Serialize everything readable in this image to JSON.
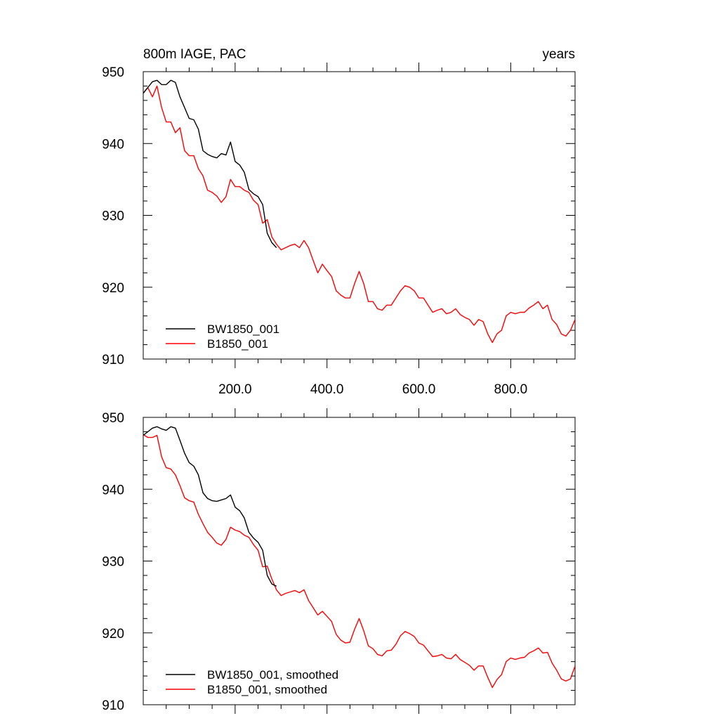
{
  "chart_data": [
    {
      "type": "line",
      "title": "800m IAGE, PAC",
      "subtitle_right": "years",
      "xlabel": "",
      "ylabel": "",
      "xlim": [
        0,
        940
      ],
      "ylim": [
        910,
        950
      ],
      "x_ticks": [
        200,
        400,
        600,
        800
      ],
      "x_tick_labels": [
        "200.0",
        "400.0",
        "600.0",
        "800.0"
      ],
      "y_ticks": [
        910,
        920,
        930,
        940,
        950
      ],
      "y_tick_labels": [
        "910",
        "920",
        "930",
        "940",
        "950"
      ],
      "grid": false,
      "legend_position": "bottom-left",
      "series": [
        {
          "name": "BW1850_001",
          "color": "#000000",
          "x": [
            0,
            10,
            20,
            30,
            40,
            50,
            60,
            70,
            80,
            90,
            100,
            110,
            120,
            130,
            140,
            150,
            160,
            170,
            180,
            190,
            200,
            210,
            220,
            230,
            240,
            250,
            260,
            270,
            280,
            290
          ],
          "values": [
            947,
            947.8,
            948.6,
            948.8,
            948.2,
            948.2,
            948.8,
            948.5,
            946.5,
            945,
            943.5,
            943.3,
            942,
            939,
            938.5,
            938.2,
            938,
            938.6,
            938.4,
            940.2,
            937.5,
            937,
            936,
            933.6,
            933,
            932.6,
            931.5,
            927.5,
            926.2,
            925.5
          ]
        },
        {
          "name": "B1850_001",
          "color": "#ff0000",
          "x": [
            0,
            10,
            20,
            30,
            40,
            50,
            60,
            70,
            80,
            90,
            100,
            110,
            120,
            130,
            140,
            150,
            160,
            170,
            180,
            190,
            200,
            210,
            220,
            230,
            240,
            250,
            260,
            270,
            280,
            290,
            300,
            310,
            320,
            330,
            340,
            350,
            360,
            370,
            380,
            390,
            400,
            410,
            420,
            430,
            440,
            450,
            460,
            470,
            480,
            490,
            500,
            510,
            520,
            530,
            540,
            550,
            560,
            570,
            580,
            590,
            600,
            610,
            620,
            630,
            640,
            650,
            660,
            670,
            680,
            690,
            700,
            710,
            720,
            730,
            740,
            750,
            760,
            770,
            780,
            790,
            800,
            810,
            820,
            830,
            840,
            850,
            860,
            870,
            880,
            890,
            900,
            910,
            920,
            930,
            940
          ],
          "values": [
            947,
            947.8,
            946.5,
            948,
            945,
            943,
            943,
            941.5,
            942.2,
            939,
            938.3,
            938.3,
            936.5,
            935.5,
            933.5,
            933.2,
            932.7,
            931.8,
            932.6,
            935,
            934,
            934,
            933.5,
            933.2,
            932.1,
            931.5,
            928.9,
            929.4,
            927,
            926,
            925.2,
            925.5,
            925.8,
            926,
            925.5,
            926.5,
            925.5,
            923.7,
            922,
            923.2,
            922.3,
            921.5,
            919.5,
            918.9,
            918.5,
            918.5,
            920.5,
            922.2,
            920.5,
            918,
            918,
            917,
            916.8,
            917.5,
            917.5,
            918.5,
            919.5,
            920.2,
            920,
            919.5,
            918.5,
            918.5,
            917.5,
            916.5,
            916.8,
            917,
            916.3,
            916.5,
            917,
            916.2,
            915.8,
            915.5,
            914.7,
            915.5,
            915.2,
            913.5,
            912.3,
            913.5,
            914,
            916,
            916.5,
            916.3,
            916.5,
            916.5,
            917.1,
            917.5,
            918,
            917,
            917.5,
            915.5,
            914.8,
            913.5,
            913.2,
            914,
            915.5
          ]
        }
      ]
    },
    {
      "type": "line",
      "title": "",
      "xlabel": "",
      "ylabel": "",
      "xlim": [
        0,
        940
      ],
      "ylim": [
        910,
        950
      ],
      "x_ticks": [
        200,
        400,
        600,
        800
      ],
      "x_tick_labels": [],
      "y_ticks": [
        910,
        920,
        930,
        940,
        950
      ],
      "y_tick_labels": [
        "910",
        "920",
        "930",
        "940",
        "950"
      ],
      "grid": false,
      "legend_position": "bottom-left",
      "series": [
        {
          "name": "BW1850_001, smoothed",
          "color": "#000000",
          "x": [
            0,
            10,
            20,
            30,
            40,
            50,
            60,
            70,
            80,
            90,
            100,
            110,
            120,
            130,
            140,
            150,
            160,
            170,
            180,
            190,
            200,
            210,
            220,
            230,
            240,
            250,
            260,
            270,
            280,
            290
          ],
          "values": [
            947.5,
            948,
            948.5,
            948.7,
            948.4,
            948.2,
            948.7,
            948.5,
            946.8,
            945,
            943.7,
            943.2,
            942,
            939.5,
            938.7,
            938.4,
            938.3,
            938.5,
            938.7,
            939.2,
            937.5,
            937,
            936,
            934,
            933.2,
            932.6,
            931.5,
            928,
            926.8,
            926.5
          ]
        },
        {
          "name": "B1850_001, smoothed",
          "color": "#ff0000",
          "x": [
            0,
            10,
            20,
            30,
            40,
            50,
            60,
            70,
            80,
            90,
            100,
            110,
            120,
            130,
            140,
            150,
            160,
            170,
            180,
            190,
            200,
            210,
            220,
            230,
            240,
            250,
            260,
            270,
            280,
            290,
            300,
            310,
            320,
            330,
            340,
            350,
            360,
            370,
            380,
            390,
            400,
            410,
            420,
            430,
            440,
            450,
            460,
            470,
            480,
            490,
            500,
            510,
            520,
            530,
            540,
            550,
            560,
            570,
            580,
            590,
            600,
            610,
            620,
            630,
            640,
            650,
            660,
            670,
            680,
            690,
            700,
            710,
            720,
            730,
            740,
            750,
            760,
            770,
            780,
            790,
            800,
            810,
            820,
            830,
            840,
            850,
            860,
            870,
            880,
            890,
            900,
            910,
            920,
            930,
            940
          ],
          "values": [
            947.6,
            947.2,
            947.2,
            947.5,
            944.5,
            943,
            942.8,
            942,
            940.5,
            938.8,
            938.4,
            938.2,
            936.5,
            935.2,
            934,
            933.3,
            932.5,
            932.2,
            933,
            934.7,
            934.3,
            934.1,
            933.6,
            933.3,
            932.3,
            931.5,
            929.2,
            929.3,
            927.5,
            926,
            925.2,
            925.5,
            925.7,
            925.9,
            925.6,
            926,
            924.5,
            923.5,
            922.5,
            923,
            922.3,
            921.6,
            919.8,
            919,
            918.6,
            918.7,
            920.5,
            922,
            920.3,
            918.2,
            917.8,
            917,
            916.8,
            917.5,
            917.6,
            918.4,
            919.6,
            920.2,
            919.9,
            919.5,
            918.6,
            918.3,
            917.5,
            916.7,
            916.8,
            917,
            916.5,
            916.4,
            917,
            916.3,
            915.9,
            915.5,
            914.8,
            915.4,
            915.4,
            913.8,
            912.4,
            913.5,
            914.2,
            916,
            916.5,
            916.3,
            916.5,
            916.6,
            917.2,
            917.5,
            917.9,
            917.2,
            917.3,
            915.8,
            914.8,
            913.6,
            913.3,
            913.6,
            915.4
          ]
        }
      ]
    }
  ]
}
